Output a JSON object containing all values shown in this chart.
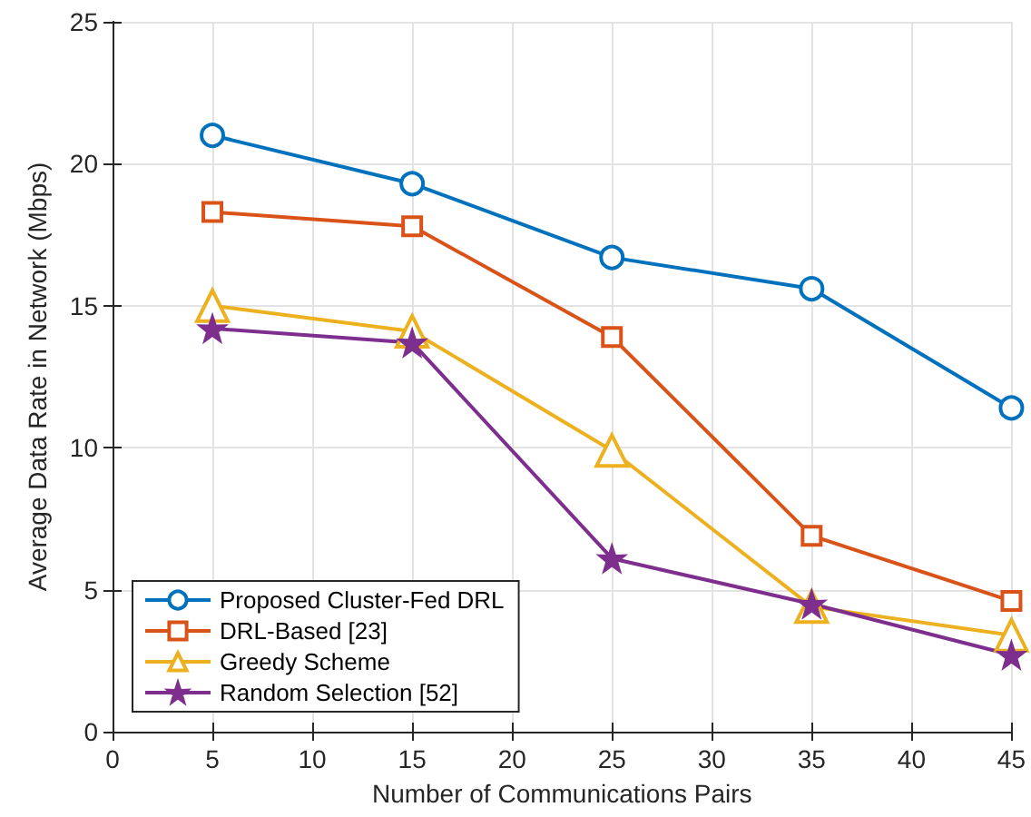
{
  "chart_data": {
    "type": "line",
    "xlabel": "Number of Communications Pairs",
    "ylabel": "Average Data Rate in Network (Mbps)",
    "x": [
      5,
      15,
      25,
      35,
      45
    ],
    "xlim": [
      0,
      45
    ],
    "xticks": [
      0,
      5,
      10,
      15,
      20,
      25,
      30,
      35,
      40,
      45
    ],
    "ylim": [
      0,
      25
    ],
    "yticks": [
      0,
      5,
      10,
      15,
      20,
      25
    ],
    "grid": true,
    "legend": "bottom left",
    "line_style": "solid",
    "series": [
      {
        "name": "Proposed Cluster-Fed DRL",
        "color": "#0072bd",
        "marker": "circle",
        "values": [
          21.0,
          19.3,
          16.7,
          15.6,
          11.4
        ]
      },
      {
        "name": "DRL-Based [23]",
        "color": "#d95319",
        "marker": "square",
        "values": [
          18.3,
          17.8,
          13.9,
          6.9,
          4.6
        ]
      },
      {
        "name": "Greedy Scheme",
        "color": "#edb120",
        "marker": "triangle",
        "values": [
          15.0,
          14.1,
          9.9,
          4.4,
          3.4
        ]
      },
      {
        "name": "Random Selection [52]",
        "color": "#7e2f8e",
        "marker": "star",
        "values": [
          14.2,
          13.7,
          6.1,
          4.5,
          2.7
        ]
      }
    ]
  }
}
